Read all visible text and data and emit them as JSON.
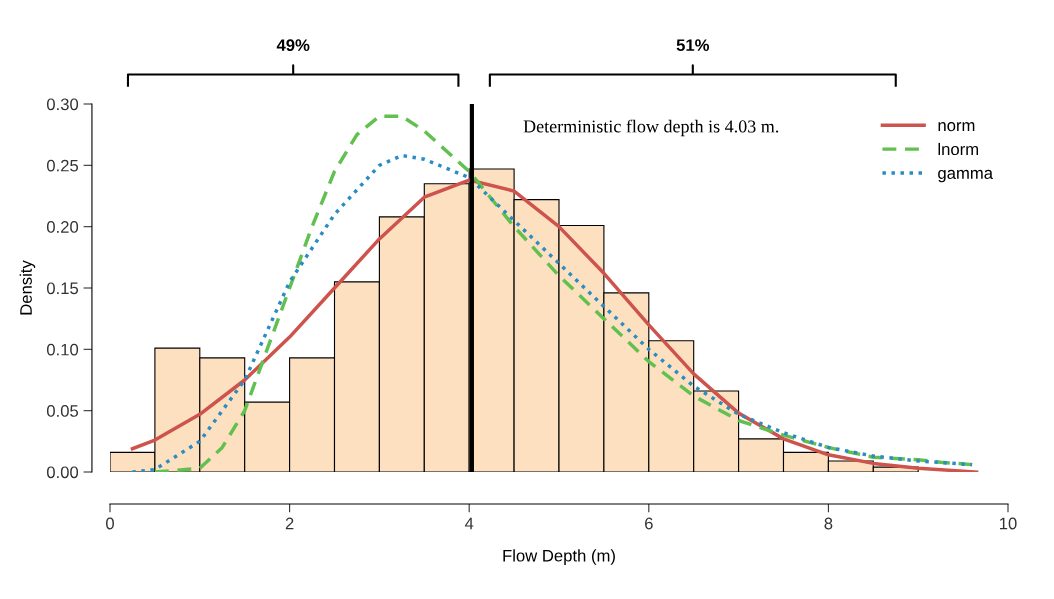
{
  "chart_data": {
    "type": "histogram",
    "xlabel": "Flow Depth (m)",
    "ylabel": "Density",
    "bins": [
      0,
      0.5,
      1,
      1.5,
      2,
      2.5,
      3,
      3.5,
      4,
      4.5,
      5,
      5.5,
      6,
      6.5,
      7,
      7.5,
      8,
      8.5,
      9,
      9.5
    ],
    "values": [
      0.016,
      0.101,
      0.093,
      0.057,
      0.093,
      0.155,
      0.208,
      0.235,
      0.247,
      0.222,
      0.201,
      0.146,
      0.107,
      0.066,
      0.027,
      0.016,
      0.009,
      0.004,
      null
    ],
    "color": "#fde0c0",
    "series": [
      {
        "name": "norm",
        "type": "line",
        "color": "#cd534c",
        "line_style": "solid",
        "x": [
          0.25,
          0.5,
          1,
          1.5,
          2,
          2.5,
          3,
          3.5,
          4,
          4.5,
          5,
          5.5,
          6,
          6.5,
          7,
          7.5,
          8,
          8.5,
          9,
          9.65
        ],
        "values": [
          0.019,
          0.026,
          0.047,
          0.075,
          0.11,
          0.15,
          0.19,
          0.224,
          0.238,
          0.229,
          0.2,
          0.162,
          0.12,
          0.08,
          0.048,
          0.027,
          0.014,
          0.007,
          0.003,
          0.0
        ]
      },
      {
        "name": "lnorm",
        "type": "line",
        "color": "#61c04f",
        "line_style": "dashed",
        "x": [
          0.5,
          1,
          1.25,
          1.5,
          2,
          2.25,
          2.5,
          2.75,
          3,
          3.25,
          3.5,
          4,
          4.5,
          5,
          5.5,
          6,
          6.5,
          7,
          7.5,
          8,
          8.5,
          9,
          9.25,
          9.6
        ],
        "values": [
          0.0,
          0.003,
          0.02,
          0.05,
          0.15,
          0.2,
          0.245,
          0.275,
          0.29,
          0.29,
          0.278,
          0.245,
          0.2,
          0.16,
          0.125,
          0.09,
          0.062,
          0.042,
          0.03,
          0.02,
          0.012,
          0.01,
          0.008,
          0.006
        ]
      },
      {
        "name": "gamma",
        "type": "line",
        "color": "#2b8cc4",
        "line_style": "dotted",
        "x": [
          0.25,
          0.5,
          1,
          1.5,
          2,
          2.5,
          3,
          3.25,
          3.5,
          4,
          4.5,
          5,
          5.5,
          6,
          6.5,
          7,
          7.5,
          8,
          8.5,
          9,
          9.6
        ],
        "values": [
          0.0,
          0.002,
          0.025,
          0.075,
          0.155,
          0.21,
          0.25,
          0.258,
          0.255,
          0.24,
          0.205,
          0.17,
          0.135,
          0.1,
          0.07,
          0.047,
          0.032,
          0.02,
          0.013,
          0.009,
          0.006
        ]
      }
    ],
    "ref_lines": [
      {
        "axis": "x",
        "value": 4.03,
        "color": "#000000"
      }
    ],
    "annotations": [
      "49%",
      "51%",
      "Deterministic flow depth is 4.03 m."
    ],
    "xlim": [
      0,
      10
    ],
    "xticks": [
      0,
      2,
      4,
      6,
      8,
      10
    ],
    "ylim": [
      0,
      0.3
    ],
    "yticks": [
      {
        "value": 0,
        "label": "0.00"
      },
      {
        "value": 0.05,
        "label": "0.05"
      },
      {
        "value": 0.1,
        "label": "0.10"
      },
      {
        "value": 0.15,
        "label": "0.15"
      },
      {
        "value": 0.2,
        "label": "0.20"
      },
      {
        "value": 0.25,
        "label": "0.25"
      },
      {
        "value": 0.3,
        "label": "0.30"
      }
    ],
    "grid": false,
    "legend": "top right"
  }
}
